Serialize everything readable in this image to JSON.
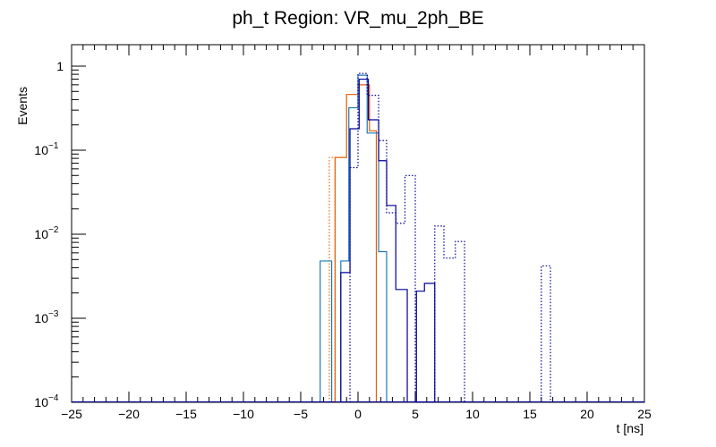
{
  "chart_data": {
    "type": "histogram",
    "title": "ph_t Region: VR_mu_2ph_BE",
    "xlabel": "t [ns]",
    "ylabel": "Events",
    "xlim": [
      -25,
      25
    ],
    "ylim": [
      0.0001,
      1.8
    ],
    "yscale": "log",
    "grid": false,
    "legend": "none",
    "x_ticks": [
      -25,
      -20,
      -15,
      -10,
      -5,
      0,
      5,
      10,
      15,
      20,
      25
    ],
    "y_ticks": [
      {
        "value": 0.0001,
        "base": "10",
        "exp": "−4"
      },
      {
        "value": 0.001,
        "base": "10",
        "exp": "−3"
      },
      {
        "value": 0.01,
        "base": "10",
        "exp": "−2"
      },
      {
        "value": 0.1,
        "base": "10",
        "exp": "−1"
      },
      {
        "value": 1,
        "base": "1",
        "exp": ""
      }
    ],
    "series": [
      {
        "color": "#ff6600",
        "style": "dotted",
        "bins": [
          [
            -2.5,
            -2.0,
            0.082
          ]
        ]
      },
      {
        "color": "#e35c00",
        "style": "solid",
        "bins": [
          [
            -2.0,
            -1.0,
            0.082
          ],
          [
            -1.0,
            0.0,
            0.46
          ],
          [
            0.0,
            1.0,
            0.6
          ],
          [
            1.0,
            1.6,
            0.17
          ]
        ]
      },
      {
        "color": "#1f77b4",
        "style": "solid",
        "bins": [
          [
            -3.3,
            -2.3,
            0.0048
          ],
          [
            -1.5,
            -0.8,
            0.0048
          ],
          [
            -0.8,
            0.0,
            0.32
          ],
          [
            0.0,
            0.8,
            0.78
          ],
          [
            0.8,
            1.8,
            0.16
          ],
          [
            1.8,
            2.5,
            0.0062
          ]
        ]
      },
      {
        "color": "#000099",
        "style": "solid",
        "bins": [
          [
            -1.5,
            -0.7,
            0.0035
          ],
          [
            -0.7,
            0.1,
            0.18
          ],
          [
            0.1,
            0.9,
            0.7
          ],
          [
            0.9,
            1.8,
            0.23
          ],
          [
            1.8,
            2.5,
            0.075
          ],
          [
            2.5,
            3.3,
            0.022
          ],
          [
            3.3,
            4.3,
            0.0022
          ],
          [
            5.1,
            5.8,
            0.0021
          ],
          [
            5.8,
            6.7,
            0.0026
          ]
        ]
      },
      {
        "color": "#000099",
        "style": "dotted",
        "bins": [
          [
            -0.7,
            0.0,
            0.062
          ],
          [
            0.0,
            0.8,
            0.82
          ],
          [
            0.8,
            1.8,
            0.45
          ],
          [
            1.8,
            2.5,
            0.13
          ],
          [
            2.5,
            3.3,
            0.018
          ],
          [
            3.3,
            4.1,
            0.0135
          ],
          [
            4.1,
            5.0,
            0.05
          ],
          [
            5.0,
            5.8,
            0.0
          ],
          [
            5.8,
            6.7,
            0.0
          ],
          [
            6.7,
            7.5,
            0.0125
          ],
          [
            7.5,
            8.5,
            0.0052
          ],
          [
            8.5,
            9.3,
            0.0082
          ],
          [
            16.0,
            16.8,
            0.0042
          ]
        ]
      }
    ]
  }
}
